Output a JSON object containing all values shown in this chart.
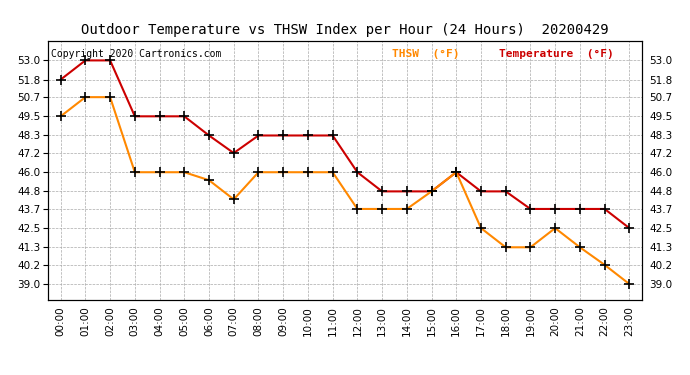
{
  "title": "Outdoor Temperature vs THSW Index per Hour (24 Hours)  20200429",
  "copyright": "Copyright 2020 Cartronics.com",
  "legend_thsw": "THSW  (°F)",
  "legend_temp": "Temperature  (°F)",
  "hours": [
    "00:00",
    "01:00",
    "02:00",
    "03:00",
    "04:00",
    "05:00",
    "06:00",
    "07:00",
    "08:00",
    "09:00",
    "10:00",
    "11:00",
    "12:00",
    "13:00",
    "14:00",
    "15:00",
    "16:00",
    "17:00",
    "18:00",
    "19:00",
    "20:00",
    "21:00",
    "22:00",
    "23:00"
  ],
  "temperature": [
    51.8,
    53.0,
    53.0,
    49.5,
    49.5,
    49.5,
    48.3,
    47.2,
    48.3,
    48.3,
    48.3,
    48.3,
    46.0,
    44.8,
    44.8,
    44.8,
    46.0,
    44.8,
    44.8,
    43.7,
    43.7,
    43.7,
    43.7,
    42.5
  ],
  "thsw": [
    49.5,
    50.7,
    50.7,
    46.0,
    46.0,
    46.0,
    45.5,
    44.3,
    46.0,
    46.0,
    46.0,
    46.0,
    43.7,
    43.7,
    43.7,
    44.8,
    46.0,
    42.5,
    41.3,
    41.3,
    42.5,
    41.3,
    40.2,
    39.0
  ],
  "bg_color": "#ffffff",
  "border_color": "#000000",
  "temp_color": "#cc0000",
  "thsw_color": "#ff8800",
  "grid_color": "#aaaaaa",
  "title_color": "#000000",
  "copyright_color": "#000000",
  "legend_thsw_color": "#ff8800",
  "legend_temp_color": "#cc0000",
  "ylim_min": 38.0,
  "ylim_max": 54.2,
  "yticks": [
    39.0,
    40.2,
    41.3,
    42.5,
    43.7,
    44.8,
    46.0,
    47.2,
    48.3,
    49.5,
    50.7,
    51.8,
    53.0
  ],
  "marker": "+",
  "marker_color": "#000000",
  "marker_size": 7,
  "line_width": 1.5,
  "title_fontsize": 10,
  "tick_fontsize": 7.5,
  "copyright_fontsize": 7,
  "legend_fontsize": 8
}
